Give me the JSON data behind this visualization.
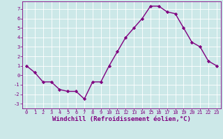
{
  "xlabel": "Windchill (Refroidissement éolien,°C)",
  "x": [
    0,
    1,
    2,
    3,
    4,
    5,
    6,
    7,
    8,
    9,
    10,
    11,
    12,
    13,
    14,
    15,
    16,
    17,
    18,
    19,
    20,
    21,
    22,
    23
  ],
  "y": [
    1.0,
    0.3,
    -0.7,
    -0.7,
    -1.5,
    -1.7,
    -1.7,
    -2.5,
    -0.7,
    -0.7,
    1.0,
    2.5,
    4.0,
    5.0,
    6.0,
    7.3,
    7.3,
    6.7,
    6.5,
    5.0,
    3.5,
    3.0,
    1.5,
    1.0
  ],
  "line_color": "#800080",
  "marker": "D",
  "marker_size": 2.2,
  "bg_color": "#cce8e8",
  "grid_color": "#ffffff",
  "ylim": [
    -3.5,
    7.8
  ],
  "xlim": [
    -0.5,
    23.5
  ],
  "yticks": [
    -3,
    -2,
    -1,
    0,
    1,
    2,
    3,
    4,
    5,
    6,
    7
  ],
  "xticks": [
    0,
    1,
    2,
    3,
    4,
    5,
    6,
    7,
    8,
    9,
    10,
    11,
    12,
    13,
    14,
    15,
    16,
    17,
    18,
    19,
    20,
    21,
    22,
    23
  ],
  "tick_label_color": "#800080",
  "tick_fontsize": 5.0,
  "xlabel_fontsize": 6.5,
  "line_width": 1.0
}
